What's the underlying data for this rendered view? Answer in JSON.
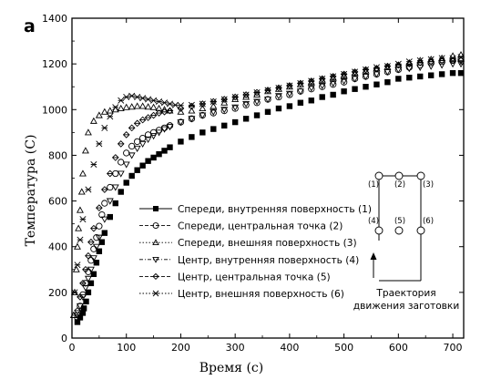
{
  "figure": {
    "panel_label": "a"
  },
  "chart_data": {
    "type": "scatter",
    "xlabel": "Время (с)",
    "ylabel": "Температура (С)",
    "xlim": [
      0,
      720
    ],
    "ylim": [
      0,
      1400
    ],
    "xticks": [
      0,
      100,
      200,
      300,
      400,
      500,
      600,
      700
    ],
    "yticks": [
      0,
      200,
      400,
      600,
      800,
      1000,
      1200,
      1400
    ],
    "grid": false,
    "legend_position": "center",
    "series": [
      {
        "name": "Спереди, внутренняя поверхность (1)",
        "marker": "filled-square",
        "color": "#000000",
        "x": [
          10,
          15,
          20,
          22,
          26,
          30,
          35,
          40,
          45,
          50,
          55,
          60,
          70,
          80,
          90,
          100,
          110,
          120,
          130,
          140,
          150,
          160,
          170,
          180,
          200,
          220,
          240,
          260,
          280,
          300,
          320,
          340,
          360,
          380,
          400,
          420,
          440,
          460,
          480,
          500,
          520,
          540,
          560,
          580,
          600,
          620,
          640,
          660,
          680,
          700,
          715
        ],
        "values": [
          70,
          90,
          110,
          130,
          160,
          200,
          240,
          280,
          330,
          380,
          420,
          460,
          530,
          590,
          640,
          680,
          710,
          735,
          755,
          775,
          790,
          805,
          820,
          835,
          860,
          880,
          900,
          915,
          930,
          945,
          960,
          975,
          990,
          1005,
          1015,
          1030,
          1040,
          1055,
          1065,
          1080,
          1090,
          1100,
          1110,
          1120,
          1135,
          1140,
          1145,
          1150,
          1155,
          1160,
          1160
        ]
      },
      {
        "name": "Спереди, центральная точка (2)",
        "marker": "open-circle",
        "color": "#000000",
        "x": [
          10,
          15,
          20,
          25,
          30,
          35,
          40,
          45,
          50,
          55,
          60,
          70,
          80,
          90,
          100,
          110,
          120,
          130,
          140,
          150,
          160,
          170,
          180,
          200,
          220,
          240,
          260,
          280,
          300,
          320,
          340,
          360,
          380,
          400,
          420,
          440,
          460,
          480,
          500,
          520,
          540,
          560,
          580,
          600,
          620,
          640,
          660,
          680,
          700,
          715
        ],
        "values": [
          90,
          140,
          190,
          240,
          290,
          340,
          390,
          440,
          490,
          540,
          590,
          660,
          720,
          770,
          810,
          840,
          860,
          875,
          890,
          900,
          910,
          920,
          930,
          945,
          960,
          975,
          985,
          995,
          1005,
          1020,
          1030,
          1045,
          1055,
          1065,
          1080,
          1090,
          1100,
          1110,
          1120,
          1135,
          1145,
          1155,
          1165,
          1175,
          1185,
          1195,
          1205,
          1210,
          1215,
          1220
        ]
      },
      {
        "name": "Спереди, внешняя поверхность (3)",
        "marker": "open-triangle-up",
        "color": "#000000",
        "x": [
          3,
          5,
          8,
          10,
          12,
          15,
          18,
          20,
          25,
          30,
          40,
          50,
          60,
          70,
          80,
          90,
          100,
          110,
          120,
          130,
          140,
          150,
          160,
          170,
          180,
          200,
          220,
          240,
          260,
          280,
          300,
          320,
          340,
          360,
          380,
          400,
          420,
          440,
          460,
          480,
          500,
          520,
          540,
          560,
          580,
          600,
          620,
          640,
          660,
          680,
          700,
          715
        ],
        "values": [
          100,
          200,
          300,
          400,
          480,
          560,
          640,
          720,
          820,
          900,
          950,
          975,
          990,
          995,
          1000,
          1005,
          1010,
          1012,
          1015,
          1015,
          1012,
          1010,
          1005,
          1000,
          995,
          990,
          995,
          1005,
          1015,
          1030,
          1045,
          1055,
          1065,
          1080,
          1090,
          1100,
          1110,
          1120,
          1130,
          1140,
          1150,
          1160,
          1170,
          1180,
          1185,
          1195,
          1205,
          1215,
          1220,
          1225,
          1235,
          1240
        ]
      },
      {
        "name": "Центр, внутренняя поверхность (4)",
        "marker": "open-triangle-down",
        "color": "#000000",
        "x": [
          10,
          15,
          20,
          25,
          30,
          35,
          40,
          45,
          50,
          60,
          70,
          80,
          90,
          100,
          110,
          120,
          130,
          140,
          150,
          160,
          170,
          180,
          200,
          220,
          240,
          260,
          280,
          300,
          320,
          340,
          360,
          380,
          400,
          420,
          440,
          460,
          480,
          500,
          520,
          540,
          560,
          580,
          600,
          620,
          640,
          660,
          680,
          700,
          715
        ],
        "values": [
          100,
          140,
          180,
          220,
          260,
          300,
          350,
          400,
          440,
          520,
          600,
          660,
          720,
          760,
          800,
          830,
          850,
          870,
          885,
          900,
          915,
          925,
          945,
          960,
          975,
          990,
          1000,
          1010,
          1025,
          1035,
          1045,
          1060,
          1070,
          1080,
          1095,
          1105,
          1115,
          1125,
          1135,
          1145,
          1155,
          1165,
          1175,
          1180,
          1185,
          1190,
          1195,
          1200,
          1200
        ]
      },
      {
        "name": "Центр, центральная точка (5)",
        "marker": "open-diamond",
        "color": "#000000",
        "x": [
          10,
          15,
          20,
          25,
          30,
          35,
          40,
          50,
          60,
          70,
          80,
          90,
          100,
          110,
          120,
          130,
          140,
          150,
          160,
          170,
          180,
          200,
          220,
          240,
          260,
          280,
          300,
          320,
          340,
          360,
          380,
          400,
          420,
          440,
          460,
          480,
          500,
          520,
          540,
          560,
          580,
          600,
          620,
          640,
          660,
          680,
          700,
          715
        ],
        "values": [
          120,
          180,
          240,
          300,
          360,
          420,
          480,
          570,
          650,
          720,
          790,
          850,
          890,
          920,
          940,
          955,
          965,
          975,
          985,
          990,
          995,
          1005,
          1015,
          1025,
          1035,
          1045,
          1055,
          1065,
          1075,
          1085,
          1095,
          1105,
          1115,
          1125,
          1135,
          1145,
          1155,
          1165,
          1175,
          1180,
          1190,
          1195,
          1200,
          1205,
          1210,
          1215,
          1215,
          1215
        ]
      },
      {
        "name": "Центр, внешняя поверхность (6)",
        "marker": "x-star",
        "color": "#000000",
        "x": [
          5,
          10,
          15,
          20,
          30,
          40,
          50,
          60,
          70,
          80,
          90,
          100,
          110,
          120,
          130,
          140,
          150,
          160,
          170,
          180,
          190,
          200,
          220,
          240,
          260,
          280,
          300,
          320,
          340,
          360,
          380,
          400,
          420,
          440,
          460,
          480,
          500,
          520,
          540,
          560,
          580,
          600,
          620,
          640,
          660,
          680,
          700,
          715
        ],
        "values": [
          200,
          320,
          430,
          520,
          650,
          760,
          850,
          920,
          970,
          1010,
          1040,
          1055,
          1060,
          1055,
          1050,
          1045,
          1040,
          1035,
          1030,
          1025,
          1020,
          1018,
          1020,
          1025,
          1035,
          1045,
          1055,
          1065,
          1075,
          1085,
          1095,
          1105,
          1115,
          1125,
          1135,
          1145,
          1155,
          1165,
          1175,
          1185,
          1190,
          1200,
          1210,
          1215,
          1220,
          1225,
          1225,
          1230
        ]
      }
    ]
  },
  "inset": {
    "point_labels": [
      "(1)",
      "(2)",
      "(3)",
      "(4)",
      "(5)",
      "(6)"
    ],
    "caption_line1": "Траектория",
    "caption_line2": "движения заготовки"
  }
}
